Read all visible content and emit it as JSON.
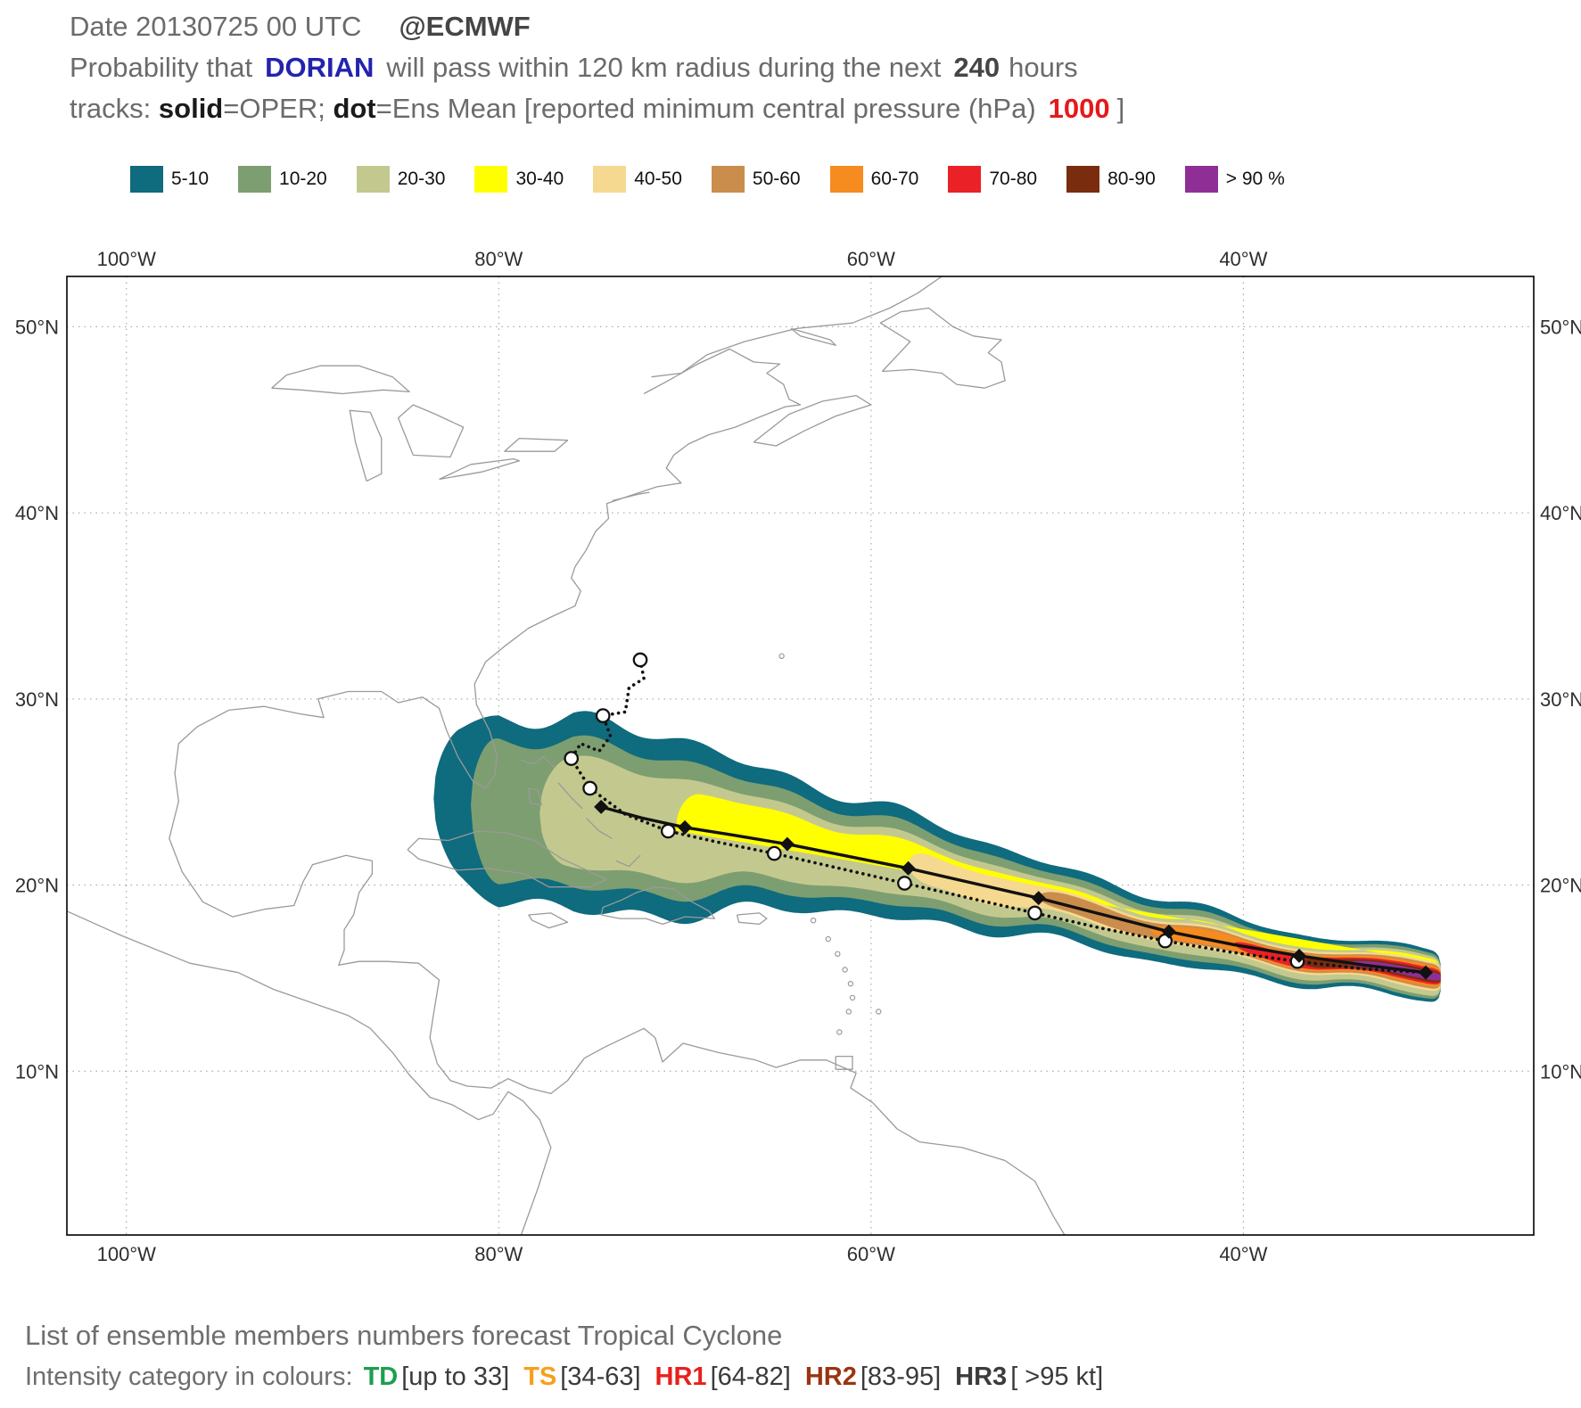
{
  "header": {
    "line1": {
      "date": "Date 20130725 00 UTC",
      "source": "@ECMWF"
    },
    "line2": {
      "pre": "Probability that",
      "storm": "DORIAN",
      "mid": "will pass within 120 km radius during the next",
      "hours": "240",
      "post": "hours"
    },
    "line3": {
      "pre": "tracks: ",
      "solid": "solid",
      "m1": "=OPER; ",
      "dot": "dot",
      "m2": "=Ens Mean [reported minimum central pressure (hPa)",
      "pressure": "1000",
      "post": "]"
    }
  },
  "map": {
    "x_ticks": [
      {
        "v": -100,
        "label": "100°W"
      },
      {
        "v": -80,
        "label": "80°W"
      },
      {
        "v": -60,
        "label": "60°W"
      },
      {
        "v": -40,
        "label": "40°W"
      }
    ],
    "y_ticks": [
      {
        "v": 50,
        "label": "50°N"
      },
      {
        "v": 40,
        "label": "40°N"
      },
      {
        "v": 30,
        "label": "30°N"
      },
      {
        "v": 20,
        "label": "20°N"
      },
      {
        "v": 10,
        "label": "10°N"
      }
    ]
  },
  "chart_data": {
    "type": "contour-map",
    "title": "Probability that DORIAN will pass within 120 km radius during the next 240 hours",
    "basetime": "20130725 00 UTC",
    "model": "ECMWF",
    "storm": "DORIAN",
    "radius_km": 120,
    "forecast_hours": 240,
    "reported_min_central_pressure_hpa": 1000,
    "map_bounds": {
      "lon": [
        -103.2,
        -24.4
      ],
      "lat": [
        1.2,
        52.7
      ]
    },
    "contours": {
      "east_end": -29.4,
      "even_step": 0.092,
      "ramp": {
        "start": -47,
        "power": 1.3,
        "max": 0.85
      },
      "centerline": [
        [
          -84.5,
          24.6
        ],
        [
          -80,
          24.1
        ],
        [
          -76,
          23.8
        ],
        [
          -72,
          23.3
        ],
        [
          -68,
          22.8
        ],
        [
          -64,
          22.2
        ],
        [
          -60,
          21.4
        ],
        [
          -56,
          20.5
        ],
        [
          -52,
          19.5
        ],
        [
          -48,
          18.5
        ],
        [
          -44,
          17.5
        ],
        [
          -40,
          16.6
        ],
        [
          -36,
          15.9
        ],
        [
          -32,
          15.4
        ],
        [
          -29.4,
          15.2
        ]
      ],
      "outer_width": [
        [
          -83.5,
          3.2
        ],
        [
          -80,
          5.0
        ],
        [
          -76,
          5.3
        ],
        [
          -72,
          4.8
        ],
        [
          -68,
          4.2
        ],
        [
          -64,
          3.55
        ],
        [
          -60,
          3.0
        ],
        [
          -56,
          2.55
        ],
        [
          -52,
          2.2
        ],
        [
          -48,
          1.9
        ],
        [
          -44,
          1.65
        ],
        [
          -40,
          1.5
        ],
        [
          -35,
          1.35
        ],
        [
          -29.6,
          1.35
        ]
      ],
      "levels": [
        {
          "label": "5-10",
          "color": "#0f6b7e",
          "west": -83.5,
          "ratio": 1.0
        },
        {
          "label": "10-20",
          "color": "#7d9e71",
          "west": -81.5,
          "ratio": 0.76
        },
        {
          "label": "20-30",
          "color": "#c3c98e",
          "west": -77.8,
          "ratio": 0.56
        },
        {
          "label": "30-40",
          "color": "#ffff00",
          "west": -70.5,
          "ratio": 0.42
        },
        {
          "label": "40-50",
          "color": "#f5d990",
          "west": -58.0,
          "ratio": 0.31
        },
        {
          "label": "50-60",
          "color": "#cb8d4c",
          "west": -51.0,
          "ratio": 0.24
        },
        {
          "label": "60-70",
          "color": "#f68b1f",
          "west": -45.0,
          "ratio": 0.185
        },
        {
          "label": "70-80",
          "color": "#ea2127",
          "west": -40.5,
          "ratio": 0.145
        },
        {
          "label": "80-90",
          "color": "#7a2d0e",
          "west": -37.0,
          "ratio": 0.11
        },
        {
          "label": "> 90 %",
          "color": "#8f2f96",
          "west": -34.5,
          "ratio": 0.08
        }
      ]
    },
    "tracks": {
      "oper": {
        "style": "solid",
        "marker": "diamond",
        "points": [
          [
            -30.2,
            15.3
          ],
          [
            -33.5,
            15.7
          ],
          [
            -37,
            16.2
          ],
          [
            -40.5,
            16.8
          ],
          [
            -44,
            17.5
          ],
          [
            -47.5,
            18.4
          ],
          [
            -51,
            19.3
          ],
          [
            -54.5,
            20.1
          ],
          [
            -58,
            20.9
          ],
          [
            -61.5,
            21.6
          ],
          [
            -64.5,
            22.2
          ],
          [
            -67.5,
            22.7
          ],
          [
            -70,
            23.1
          ],
          [
            -72.3,
            23.6
          ],
          [
            -74.5,
            24.2
          ]
        ],
        "marker_indices": [
          0,
          2,
          4,
          6,
          8,
          10,
          12,
          14
        ]
      },
      "ens_mean": {
        "style": "dotted",
        "marker": "circle",
        "points": [
          [
            -30.2,
            15.3
          ],
          [
            -33.6,
            15.5
          ],
          [
            -37.1,
            15.9
          ],
          [
            -40.7,
            16.4
          ],
          [
            -44.2,
            17.0
          ],
          [
            -47.7,
            17.7
          ],
          [
            -51.2,
            18.5
          ],
          [
            -54.7,
            19.3
          ],
          [
            -58.2,
            20.1
          ],
          [
            -61.7,
            20.9
          ],
          [
            -65.2,
            21.7
          ],
          [
            -68.2,
            22.3
          ],
          [
            -70.9,
            22.9
          ],
          [
            -73.2,
            23.8
          ],
          [
            -75.1,
            25.2
          ],
          [
            -76.1,
            26.8
          ],
          [
            -75.6,
            27.6
          ],
          [
            -74.6,
            27.2
          ],
          [
            -74,
            28
          ],
          [
            -74.4,
            29.1
          ],
          [
            -73.2,
            29.3
          ],
          [
            -73,
            30.6
          ],
          [
            -72.2,
            31.1
          ],
          [
            -72.4,
            32.1
          ]
        ],
        "marker_indices": [
          2,
          4,
          6,
          8,
          10,
          12,
          14,
          15,
          19,
          23
        ]
      }
    }
  },
  "footer": {
    "line1": "List of ensemble members numbers forecast Tropical Cyclone",
    "line2_prefix": "Intensity category in colours: ",
    "range_color": "#3a3a3a",
    "categories": [
      {
        "name": "TD",
        "range": "[up to 33]",
        "color": "#1d9e50"
      },
      {
        "name": "TS",
        "range": "[34-63]",
        "color": "#f6a01b"
      },
      {
        "name": "HR1",
        "range": "[64-82]",
        "color": "#e8201c"
      },
      {
        "name": "HR2",
        "range": "[83-95]",
        "color": "#9a3410"
      },
      {
        "name": "HR3",
        "range": "[ >95 kt]",
        "color": "#3c3c3c"
      }
    ]
  }
}
